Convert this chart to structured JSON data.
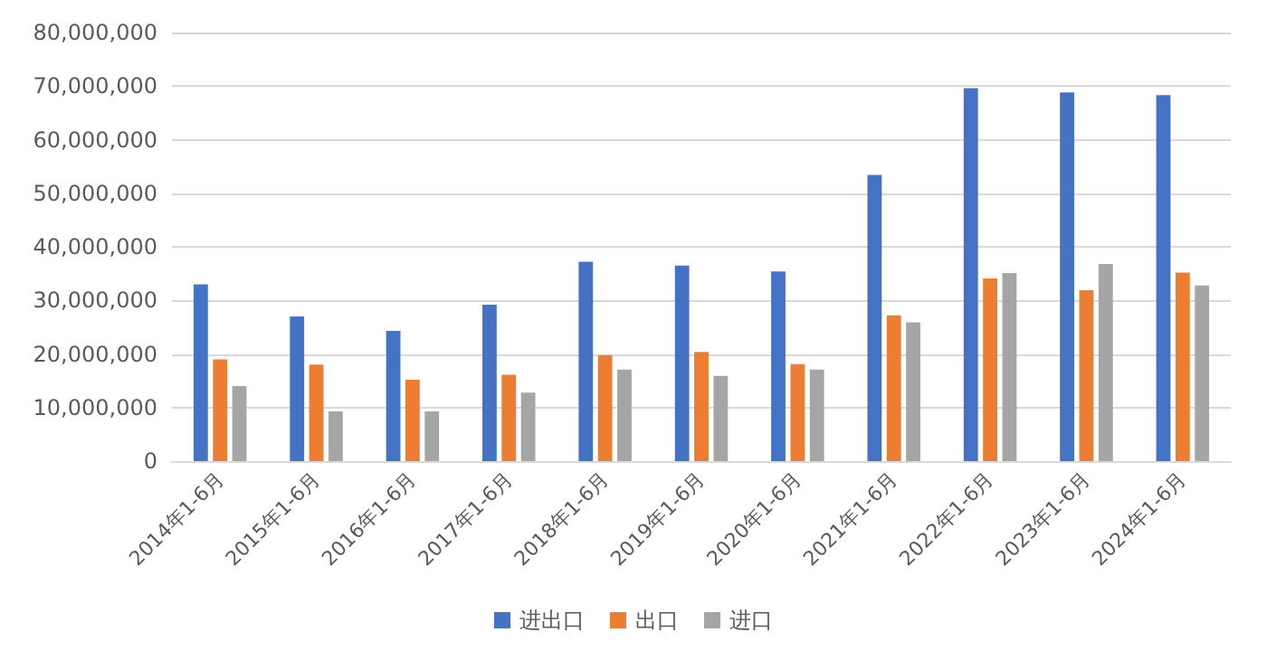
{
  "chart_data": {
    "type": "bar",
    "categories": [
      "2014年1-6月",
      "2015年1-6月",
      "2016年1-6月",
      "2017年1-6月",
      "2018年1-6月",
      "2019年1-6月",
      "2020年1-6月",
      "2021年1-6月",
      "2022年1-6月",
      "2023年1-6月",
      "2024年1-6月"
    ],
    "series": [
      {
        "name": "进出口",
        "color": "#4472c4",
        "values": [
          33000000,
          27000000,
          24300000,
          29200000,
          37200000,
          36500000,
          35400000,
          53400000,
          69600000,
          68800000,
          68300000
        ]
      },
      {
        "name": "出口",
        "color": "#ed7d31",
        "values": [
          19000000,
          18000000,
          15200000,
          16100000,
          19800000,
          20400000,
          18100000,
          27200000,
          34100000,
          31900000,
          35200000
        ]
      },
      {
        "name": "进口",
        "color": "#a5a5a5",
        "values": [
          14000000,
          9300000,
          9300000,
          12800000,
          17100000,
          15900000,
          17100000,
          25900000,
          35100000,
          36800000,
          32800000
        ]
      }
    ],
    "ylim": [
      0,
      80000000
    ],
    "yticks": [
      0,
      {
        "value": 10000000,
        "label": "10,000,000"
      },
      {
        "value": 20000000,
        "label": "20,000,000"
      },
      {
        "value": 30000000,
        "label": "30,000,000"
      },
      {
        "value": 40000000,
        "label": "40,000,000"
      },
      {
        "value": 50000000,
        "label": "50,000,000"
      },
      {
        "value": 60000000,
        "label": "60,000,000"
      },
      {
        "value": 70000000,
        "label": "70,000,000"
      },
      {
        "value": 80000000,
        "label": "80,000,000"
      }
    ],
    "grid": "y",
    "legend": "bottom"
  }
}
